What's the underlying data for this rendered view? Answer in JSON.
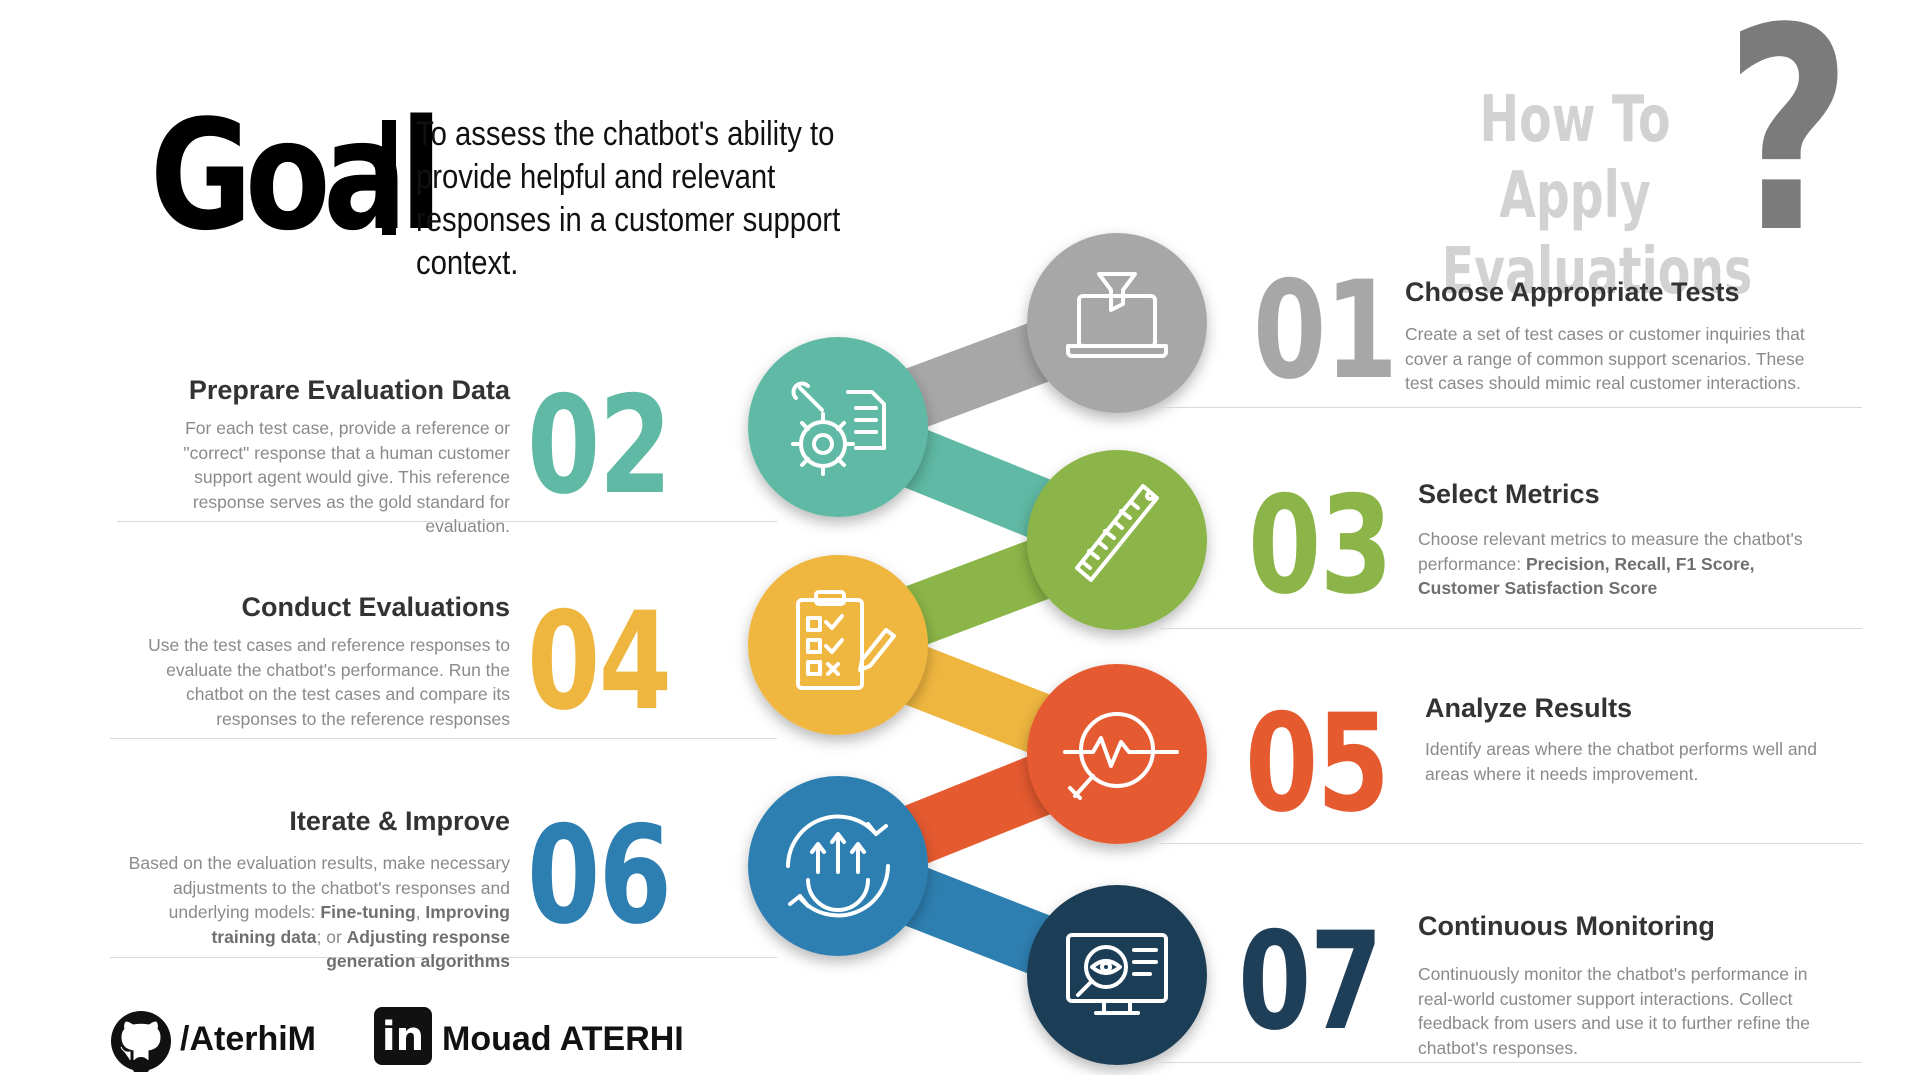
{
  "goal": {
    "word": "Goal",
    "text": "To assess the chatbot's ability to provide helpful and relevant responses in a customer support context."
  },
  "header": {
    "line1": "How To Apply",
    "line2": "Evaluations",
    "qmark": "?"
  },
  "colors": {
    "gray": "#a7a7a7",
    "teal": "#5fb9a4",
    "green": "#8bb548",
    "yellow": "#efb63f",
    "orange": "#e65a30",
    "blue": "#2e7fb1",
    "navy": "#1f3e57"
  },
  "steps": [
    {
      "num": "01",
      "title": "Choose Appropriate Tests",
      "icon": "laptop-funnel-icon",
      "desc": "Create a set of test cases or customer inquiries that cover a range of common support scenarios. These test cases should mimic real customer interactions."
    },
    {
      "num": "02",
      "title": "Preprare Evaluation Data",
      "icon": "gear-wrench-document-icon",
      "desc": "For each test case, provide a reference or \"correct\" response that a human customer support agent would give. This reference response serves as the gold standard for evaluation."
    },
    {
      "num": "03",
      "title": "Select Metrics",
      "icon": "ruler-icon",
      "desc_prefix": "Choose relevant metrics to measure the chatbot's performance: ",
      "desc_bold": "Precision, Recall, F1 Score, Customer Satisfaction Score"
    },
    {
      "num": "04",
      "title": "Conduct Evaluations",
      "icon": "checklist-clipboard-icon",
      "desc": "Use the test cases and reference responses to evaluate the chatbot's performance. Run the chatbot on the test cases and compare its responses to the reference responses"
    },
    {
      "num": "05",
      "title": "Analyze Results",
      "icon": "magnifier-pulse-icon",
      "desc": "Identify areas where the chatbot performs well and areas where it needs improvement."
    },
    {
      "num": "06",
      "title": "Iterate & Improve",
      "icon": "improvement-cycle-icon",
      "desc_prefix": "Based on the evaluation results, make necessary adjustments to the chatbot's responses and underlying models: ",
      "desc_b1": "Fine-tuning",
      "desc_sep1": ", ",
      "desc_b2": "Improving training data",
      "desc_sep2": "; or ",
      "desc_b3": "Adjusting response generation algorithms"
    },
    {
      "num": "07",
      "title": "Continuous Monitoring",
      "icon": "monitor-eye-icon",
      "desc": "Continuously monitor the chatbot's performance in real-world customer support interactions. Collect feedback from users and use it to further refine the chatbot's responses."
    }
  ],
  "footer": {
    "github": "/AterhiM",
    "linkedin_glyph": "in",
    "linkedin": "Mouad ATERHI"
  }
}
